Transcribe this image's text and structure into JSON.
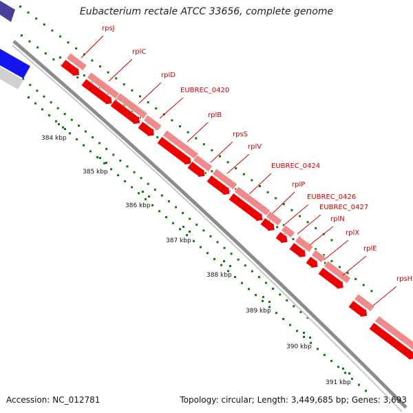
{
  "title": "Eubacterium rectale ATCC 33656, complete genome",
  "accession": "Accession: NC_012781",
  "topology": "Topology: circular; Length: 3,449,685 bp; Genes: 3,693",
  "colors": {
    "backbone": "#8c8c8c",
    "gene_forward": "#ee0000",
    "gene_light": "#f08a8a",
    "blue_feature": "#1414ee",
    "navy_feature": "#4a3f9a",
    "grey_feature": "#d0d0d0",
    "tick_dots": "#0a7a0a",
    "label_text": "#cc0000",
    "leader_line": "#cc0000"
  },
  "scale_labels": [
    "384 kbp",
    "385 kbp",
    "386 kbp",
    "387 kbp",
    "388 kbp",
    "389 kbp",
    "390 kbp",
    "391 kbp"
  ],
  "genes": [
    "rpsJ",
    "rplC",
    "rplD",
    "EUBREC_0420",
    "rplB",
    "rpsS",
    "rplV",
    "EUBREC_0424",
    "rplP",
    "EUBREC_0426",
    "EUBREC_0427",
    "rplN",
    "rplX",
    "rplE",
    "rpsH"
  ]
}
